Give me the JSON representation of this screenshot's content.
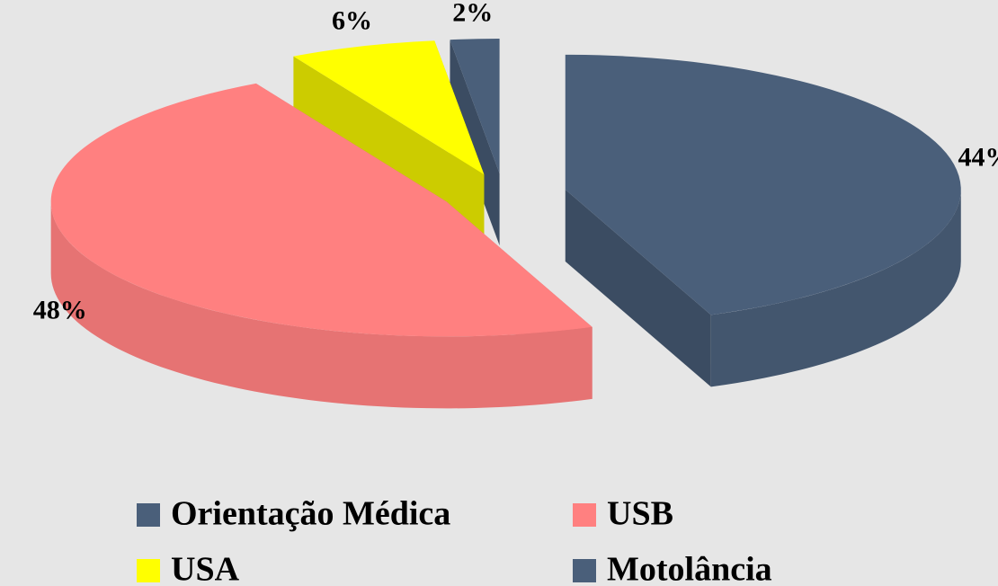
{
  "chart_data": {
    "type": "pie",
    "categories": [
      "Orientação Médica",
      "USB",
      "USA",
      "Motolância"
    ],
    "values": [
      44,
      48,
      6,
      2
    ],
    "value_labels": [
      "44%",
      "48%",
      "6%",
      "2%"
    ],
    "colors": [
      "#4a5f7a",
      "#ff8080",
      "#ffff00",
      "#4a5f7a"
    ]
  }
}
